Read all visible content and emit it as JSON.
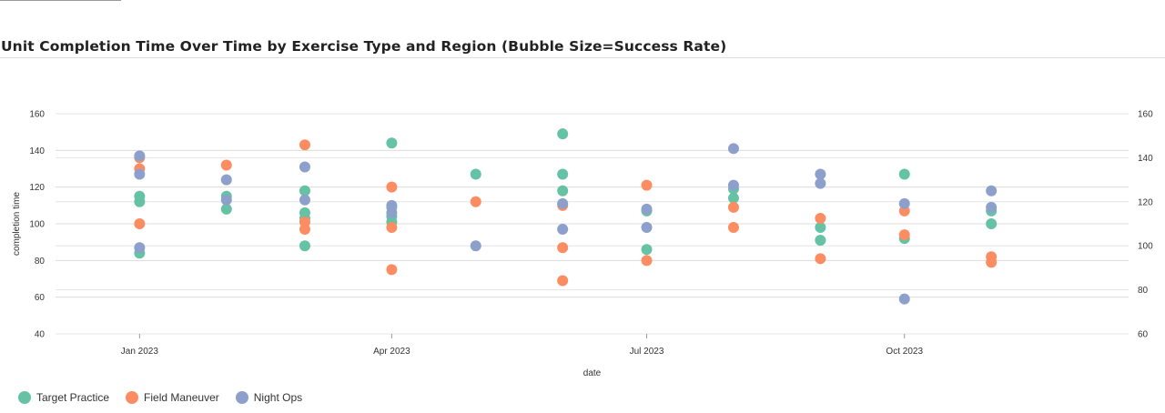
{
  "chart_data": {
    "type": "scatter",
    "title": "Unit Completion Time Over Time by Exercise Type and Region (Bubble Size=Success Rate)",
    "xlabel": "date",
    "ylabel": "completion time",
    "x_ticks": [
      "Jan 2023",
      "Apr 2023",
      "Jul 2023",
      "Oct 2023"
    ],
    "y_left_ticks": [
      40,
      60,
      80,
      100,
      120,
      140,
      160
    ],
    "y_right_ticks": [
      60,
      80,
      100,
      120,
      140,
      160
    ],
    "ylim_left": [
      40,
      160
    ],
    "ylim_right": [
      60,
      160
    ],
    "x_range": [
      "2022-12-02",
      "2023-12-20"
    ],
    "grid": true,
    "legend_position": "bottom-left",
    "series": [
      {
        "name": "Target Practice",
        "color": "#66c2a5",
        "points": [
          {
            "date": "2023-01-01",
            "y": 115
          },
          {
            "date": "2023-01-01",
            "y": 112
          },
          {
            "date": "2023-01-01",
            "y": 84
          },
          {
            "date": "2023-02-01",
            "y": 115
          },
          {
            "date": "2023-02-01",
            "y": 108
          },
          {
            "date": "2023-03-01",
            "y": 118
          },
          {
            "date": "2023-03-01",
            "y": 106
          },
          {
            "date": "2023-03-01",
            "y": 103
          },
          {
            "date": "2023-03-01",
            "y": 88
          },
          {
            "date": "2023-04-01",
            "y": 144
          },
          {
            "date": "2023-04-01",
            "y": 109
          },
          {
            "date": "2023-04-01",
            "y": 104
          },
          {
            "date": "2023-04-01",
            "y": 101
          },
          {
            "date": "2023-05-01",
            "y": 127
          },
          {
            "date": "2023-06-01",
            "y": 149
          },
          {
            "date": "2023-06-01",
            "y": 127
          },
          {
            "date": "2023-06-01",
            "y": 118
          },
          {
            "date": "2023-07-01",
            "y": 107
          },
          {
            "date": "2023-07-01",
            "y": 86
          },
          {
            "date": "2023-08-01",
            "y": 119
          },
          {
            "date": "2023-08-01",
            "y": 114
          },
          {
            "date": "2023-09-01",
            "y": 98
          },
          {
            "date": "2023-09-01",
            "y": 91
          },
          {
            "date": "2023-10-01",
            "y": 127
          },
          {
            "date": "2023-10-01",
            "y": 92
          },
          {
            "date": "2023-11-01",
            "y": 107
          },
          {
            "date": "2023-11-01",
            "y": 100
          }
        ]
      },
      {
        "name": "Field Maneuver",
        "color": "#fc8d62",
        "points": [
          {
            "date": "2023-01-01",
            "y": 136
          },
          {
            "date": "2023-01-01",
            "y": 130
          },
          {
            "date": "2023-01-01",
            "y": 100
          },
          {
            "date": "2023-02-01",
            "y": 132
          },
          {
            "date": "2023-03-01",
            "y": 143
          },
          {
            "date": "2023-03-01",
            "y": 101
          },
          {
            "date": "2023-03-01",
            "y": 97
          },
          {
            "date": "2023-04-01",
            "y": 120
          },
          {
            "date": "2023-04-01",
            "y": 98
          },
          {
            "date": "2023-04-01",
            "y": 75
          },
          {
            "date": "2023-05-01",
            "y": 112
          },
          {
            "date": "2023-06-01",
            "y": 110
          },
          {
            "date": "2023-06-01",
            "y": 87
          },
          {
            "date": "2023-06-01",
            "y": 69
          },
          {
            "date": "2023-07-01",
            "y": 121
          },
          {
            "date": "2023-07-01",
            "y": 80
          },
          {
            "date": "2023-08-01",
            "y": 109
          },
          {
            "date": "2023-08-01",
            "y": 98
          },
          {
            "date": "2023-09-01",
            "y": 103
          },
          {
            "date": "2023-09-01",
            "y": 81
          },
          {
            "date": "2023-10-01",
            "y": 107
          },
          {
            "date": "2023-10-01",
            "y": 94
          },
          {
            "date": "2023-11-01",
            "y": 82
          },
          {
            "date": "2023-11-01",
            "y": 79
          }
        ]
      },
      {
        "name": "Night Ops",
        "color": "#8da0cb",
        "points": [
          {
            "date": "2023-01-01",
            "y": 137
          },
          {
            "date": "2023-01-01",
            "y": 127
          },
          {
            "date": "2023-01-01",
            "y": 87
          },
          {
            "date": "2023-02-01",
            "y": 124
          },
          {
            "date": "2023-02-01",
            "y": 113
          },
          {
            "date": "2023-03-01",
            "y": 131
          },
          {
            "date": "2023-03-01",
            "y": 113
          },
          {
            "date": "2023-04-01",
            "y": 110
          },
          {
            "date": "2023-04-01",
            "y": 106
          },
          {
            "date": "2023-05-01",
            "y": 88
          },
          {
            "date": "2023-06-01",
            "y": 111
          },
          {
            "date": "2023-06-01",
            "y": 97
          },
          {
            "date": "2023-07-01",
            "y": 108
          },
          {
            "date": "2023-07-01",
            "y": 98
          },
          {
            "date": "2023-08-01",
            "y": 141
          },
          {
            "date": "2023-08-01",
            "y": 121
          },
          {
            "date": "2023-09-01",
            "y": 127
          },
          {
            "date": "2023-09-01",
            "y": 122
          },
          {
            "date": "2023-10-01",
            "y": 111
          },
          {
            "date": "2023-10-01",
            "y": 59
          },
          {
            "date": "2023-11-01",
            "y": 118
          },
          {
            "date": "2023-11-01",
            "y": 109
          }
        ]
      }
    ]
  }
}
